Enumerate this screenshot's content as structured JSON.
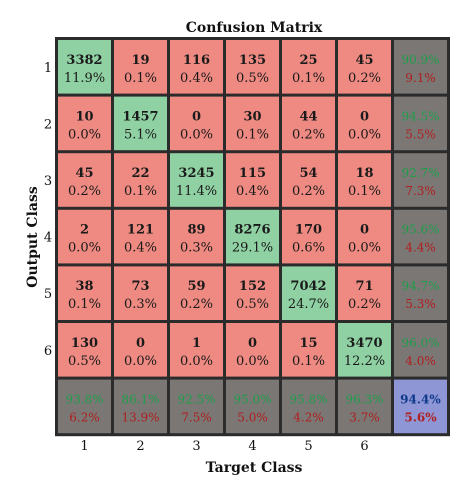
{
  "chart_data": {
    "type": "heatmap",
    "title": "Confusion Matrix",
    "xlabel": "Target Class",
    "ylabel": "Output Class",
    "x_tick_labels": [
      "1",
      "2",
      "3",
      "4",
      "5",
      "6"
    ],
    "y_tick_labels": [
      "1",
      "2",
      "3",
      "4",
      "5",
      "6"
    ],
    "counts": [
      [
        3382,
        19,
        116,
        135,
        25,
        45
      ],
      [
        10,
        1457,
        0,
        30,
        44,
        0
      ],
      [
        45,
        22,
        3245,
        115,
        54,
        18
      ],
      [
        2,
        121,
        89,
        8276,
        170,
        0
      ],
      [
        38,
        73,
        59,
        152,
        7042,
        71
      ],
      [
        130,
        0,
        1,
        0,
        15,
        3470
      ]
    ],
    "percentages": [
      [
        "11.9%",
        "0.1%",
        "0.4%",
        "0.5%",
        "0.1%",
        "0.2%"
      ],
      [
        "0.0%",
        "5.1%",
        "0.0%",
        "0.1%",
        "0.2%",
        "0.0%"
      ],
      [
        "0.2%",
        "0.1%",
        "11.4%",
        "0.4%",
        "0.2%",
        "0.1%"
      ],
      [
        "0.0%",
        "0.4%",
        "0.3%",
        "29.1%",
        "0.6%",
        "0.0%"
      ],
      [
        "0.1%",
        "0.3%",
        "0.2%",
        "0.5%",
        "24.7%",
        "0.2%"
      ],
      [
        "0.5%",
        "0.0%",
        "0.0%",
        "0.0%",
        "0.1%",
        "12.2%"
      ]
    ],
    "row_summary": [
      {
        "correct": "90.9%",
        "incorrect": "9.1%"
      },
      {
        "correct": "94.5%",
        "incorrect": "5.5%"
      },
      {
        "correct": "92.7%",
        "incorrect": "7.3%"
      },
      {
        "correct": "95.6%",
        "incorrect": "4.4%"
      },
      {
        "correct": "94.7%",
        "incorrect": "5.3%"
      },
      {
        "correct": "96.0%",
        "incorrect": "4.0%"
      }
    ],
    "column_summary": [
      {
        "correct": "93.8%",
        "incorrect": "6.2%"
      },
      {
        "correct": "86.1%",
        "incorrect": "13.9%"
      },
      {
        "correct": "92.5%",
        "incorrect": "7.5%"
      },
      {
        "correct": "95.0%",
        "incorrect": "5.0%"
      },
      {
        "correct": "95.8%",
        "incorrect": "4.2%"
      },
      {
        "correct": "96.3%",
        "incorrect": "3.7%"
      }
    ],
    "overall": {
      "correct": "94.4%",
      "incorrect": "5.6%"
    },
    "colors": {
      "diagonal": "#8fd1a3",
      "off_diagonal": "#ee8a82",
      "summary": "#7b7775",
      "overall": "#8e96d6",
      "summary_correct_text": "#1e9e4a",
      "summary_incorrect_text": "#b01e1e",
      "overall_correct_text": "#0f3a8a"
    }
  }
}
